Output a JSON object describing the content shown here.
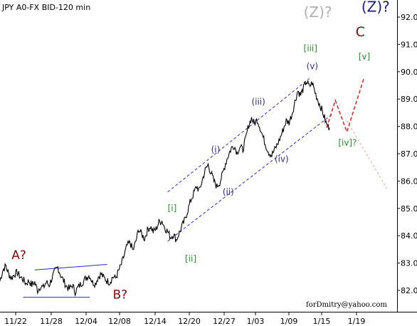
{
  "chart_data": {
    "type": "line",
    "title": "JPY A0-FX BID-120 min",
    "credit": "forDmitry@yahoo.com",
    "ylim": [
      81.3,
      92.7
    ],
    "y_ticks": [
      "82.00",
      "83.00",
      "84.00",
      "85.00",
      "86.00",
      "87.00",
      "88.00",
      "89.00",
      "90.00",
      "91.00",
      "92.00"
    ],
    "x_ticks": [
      "11/22",
      "11/28",
      "12/04",
      "12/08",
      "12/14",
      "12/20",
      "12/27",
      "1/03",
      "1/09",
      "1/15",
      "1/19"
    ],
    "grid": false,
    "colors": {
      "price": "#000000",
      "channel": "#2828c8",
      "forecast_red": "#e02020",
      "forecast_pink": "#e8a0a0",
      "label_navy": "#1a1a7a",
      "label_maroon": "#7a0a0a",
      "label_green": "#2a8a2a",
      "label_gray": "#b0b0b0",
      "label_blue": "#30307a"
    },
    "series": [
      {
        "values": [
          82.35,
          82.75,
          82.9,
          82.6,
          82.45,
          82.6,
          82.65,
          82.5,
          82.4,
          82.25,
          82.35,
          82.2,
          82.3,
          82.0,
          82.15,
          82.1,
          82.3,
          82.2,
          82.45,
          82.7,
          82.85,
          82.55,
          82.35,
          82.15,
          82.05,
          82.2,
          81.95,
          82.1,
          82.25,
          82.35,
          82.5,
          82.55,
          82.3,
          82.25,
          82.5,
          82.6,
          82.45,
          82.35,
          82.3,
          82.5,
          82.45,
          82.7,
          82.95,
          83.3,
          83.65,
          83.75,
          83.45,
          83.8,
          84.25,
          84.05,
          83.9,
          84.2,
          84.35,
          84.15,
          84.25,
          84.5,
          84.55,
          84.3,
          84.15,
          83.95,
          84.05,
          83.85,
          84.1,
          84.35,
          84.6,
          84.95,
          85.3,
          85.55,
          85.8,
          85.65,
          86.05,
          86.4,
          86.6,
          86.3,
          86.0,
          85.8,
          85.95,
          86.25,
          86.65,
          86.95,
          87.2,
          87.3,
          87.05,
          87.25,
          87.15,
          87.55,
          88.05,
          88.3,
          88.1,
          88.25,
          87.95,
          87.6,
          87.3,
          87.05,
          86.95,
          87.15,
          87.35,
          87.6,
          87.9,
          88.2,
          88.15,
          88.45,
          88.9,
          89.3,
          89.15,
          89.4,
          89.65,
          89.45,
          89.6,
          89.25,
          88.95,
          88.7,
          88.4,
          88.05,
          87.95
        ],
        "x_start": 0,
        "x_end": 112
      }
    ],
    "forecast": {
      "red_path": [
        [
          113,
          87.95
        ],
        [
          116,
          88.95
        ],
        [
          120,
          87.8
        ],
        [
          126,
          89.8
        ]
      ],
      "pink_path": [
        [
          120,
          88.2
        ],
        [
          134,
          85.7
        ]
      ]
    },
    "channels": [
      {
        "name": "lower-flat-line",
        "points": [
          [
            8,
            81.75
          ],
          [
            31,
            81.75
          ]
        ]
      },
      {
        "name": "upper-flat-line",
        "points": [
          [
            12,
            82.75
          ],
          [
            37,
            82.95
          ]
        ]
      },
      {
        "name": "lower-trend-channel",
        "points": [
          [
            58,
            83.8
          ],
          [
            115,
            88.45
          ]
        ]
      },
      {
        "name": "upper-trend-channel",
        "points": [
          [
            58,
            85.6
          ],
          [
            107,
            89.75
          ]
        ]
      }
    ],
    "wave_labels": [
      {
        "text": "A?",
        "x": 4,
        "y": 83.15,
        "color": "label_maroon",
        "size": 17
      },
      {
        "text": "B?",
        "x": 39,
        "y": 81.7,
        "color": "label_maroon",
        "size": 17
      },
      {
        "text": "C",
        "x": 123,
        "y": 91.3,
        "color": "label_maroon",
        "size": 19
      },
      {
        "text": "(Z)?",
        "x": 105,
        "y": 92.0,
        "color": "label_gray",
        "size": 20
      },
      {
        "text": "(Z)?",
        "x": 125,
        "y": 92.2,
        "color": "label_navy",
        "size": 20
      },
      {
        "text": "[i]",
        "x": 58,
        "y": 84.9,
        "color": "label_green",
        "size": 12
      },
      {
        "text": "[ii]",
        "x": 64,
        "y": 83.05,
        "color": "label_green",
        "size": 12
      },
      {
        "text": "[iii]",
        "x": 105,
        "y": 90.75,
        "color": "label_green",
        "size": 12
      },
      {
        "text": "[iv]?",
        "x": 117,
        "y": 87.3,
        "color": "label_green",
        "size": 12
      },
      {
        "text": "[v]",
        "x": 124,
        "y": 90.45,
        "color": "label_green",
        "size": 12
      },
      {
        "text": "(i)",
        "x": 73,
        "y": 87.05,
        "color": "label_blue",
        "size": 12
      },
      {
        "text": "(ii)",
        "x": 77,
        "y": 85.5,
        "color": "label_blue",
        "size": 12
      },
      {
        "text": "(iii)",
        "x": 87,
        "y": 88.8,
        "color": "label_blue",
        "size": 12
      },
      {
        "text": "(iv)",
        "x": 95,
        "y": 86.7,
        "color": "label_blue",
        "size": 12
      },
      {
        "text": "(v)",
        "x": 106,
        "y": 90.1,
        "color": "label_blue",
        "size": 12
      }
    ]
  }
}
